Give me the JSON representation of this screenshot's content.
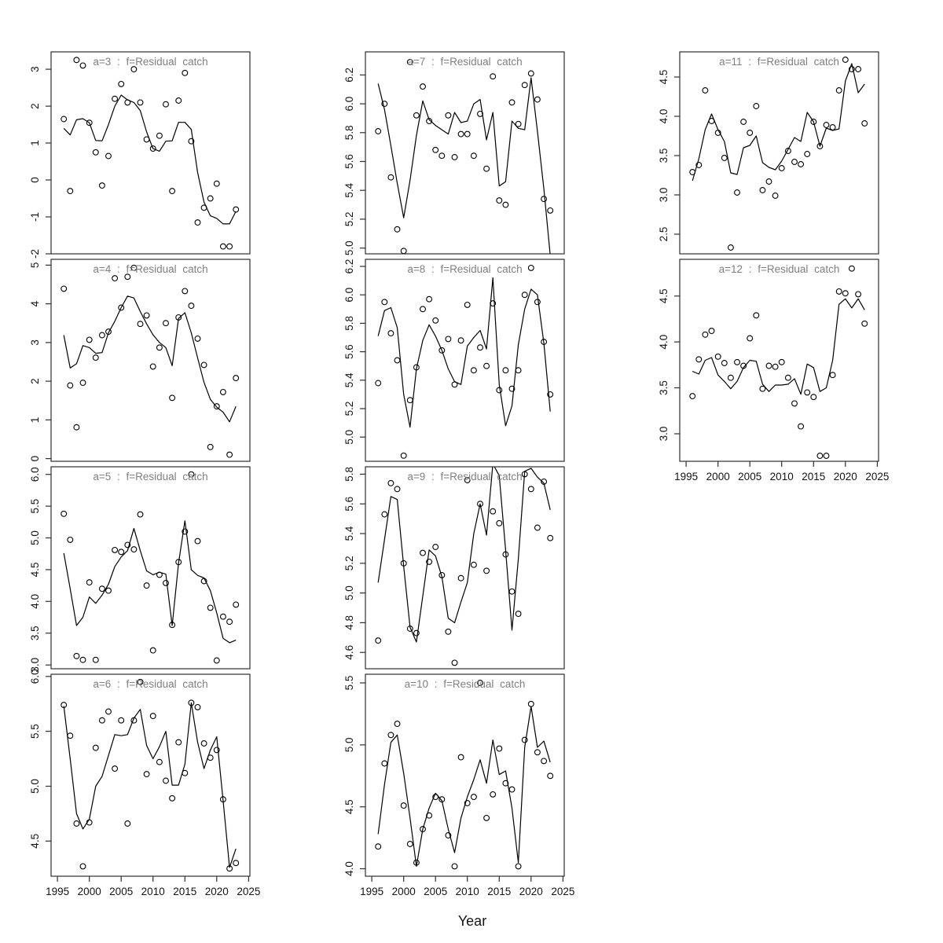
{
  "figure": {
    "xlabel": "Year",
    "background": "#ffffff",
    "frame_color": "#2f2f2f",
    "title_color": "#7f7f7f",
    "series_color": "#000000"
  },
  "x_axis": {
    "xlim": [
      1994.0,
      2025.2
    ],
    "ticks": [
      1995,
      2000,
      2005,
      2010,
      2015,
      2020,
      2025
    ],
    "tick_labels": [
      "1995",
      "2000",
      "2005",
      "2010",
      "2015",
      "2020",
      "2025"
    ],
    "years": [
      1996,
      1997,
      1998,
      1999,
      2000,
      2001,
      2002,
      2003,
      2004,
      2005,
      2006,
      2007,
      2008,
      2009,
      2010,
      2011,
      2012,
      2013,
      2014,
      2015,
      2016,
      2017,
      2018,
      2019,
      2020,
      2021,
      2022,
      2023
    ]
  },
  "chart_data": [
    {
      "type": "scatter+line",
      "a": "3",
      "title": "a=3 : f=Residual catch",
      "col": 0,
      "row": 0,
      "xaxis": false,
      "ylim": [
        -2.0,
        3.47
      ],
      "yticks": [
        "-2",
        "-1",
        "0",
        "1",
        "2",
        "3"
      ],
      "points": [
        1.65,
        -0.3,
        3.25,
        3.1,
        1.55,
        0.75,
        -0.15,
        0.65,
        2.2,
        2.6,
        2.1,
        3.0,
        2.1,
        1.1,
        0.85,
        1.2,
        2.05,
        -0.3,
        2.15,
        2.9,
        1.05,
        -1.15,
        -0.75,
        -0.5,
        -0.1,
        -1.8,
        -1.8,
        -0.8
      ],
      "line": [
        1.4,
        1.22,
        1.63,
        1.66,
        1.55,
        1.07,
        1.06,
        1.5,
        2.0,
        2.3,
        2.17,
        2.1,
        1.88,
        1.3,
        0.85,
        0.78,
        1.05,
        1.06,
        1.56,
        1.56,
        1.37,
        0.2,
        -0.6,
        -0.97,
        -1.04,
        -1.19,
        -1.19,
        -0.85
      ]
    },
    {
      "type": "scatter+line",
      "a": "4",
      "title": "a=4 : f=Residual catch",
      "col": 0,
      "row": 1,
      "xaxis": false,
      "ylim": [
        -0.07,
        5.15
      ],
      "yticks": [
        "0",
        "1",
        "2",
        "3",
        "4",
        "5"
      ],
      "points": [
        4.39,
        1.89,
        0.81,
        1.96,
        3.07,
        2.61,
        3.19,
        3.28,
        4.66,
        3.9,
        4.7,
        4.93,
        3.48,
        3.7,
        2.38,
        2.87,
        3.5,
        1.57,
        3.65,
        4.33,
        3.95,
        3.1,
        2.42,
        0.3,
        1.35,
        1.72,
        0.1,
        2.08
      ],
      "line": [
        3.19,
        2.34,
        2.45,
        2.92,
        2.87,
        2.72,
        2.74,
        3.25,
        3.55,
        3.9,
        4.2,
        4.15,
        3.8,
        3.48,
        3.2,
        3.0,
        2.87,
        2.4,
        3.62,
        3.77,
        3.25,
        2.6,
        1.97,
        1.53,
        1.33,
        1.2,
        0.95,
        1.35
      ]
    },
    {
      "type": "scatter+line",
      "a": "5",
      "title": "a=5 : f=Residual catch",
      "col": 0,
      "row": 2,
      "xaxis": false,
      "ylim": [
        2.94,
        6.12
      ],
      "yticks": [
        "3.0",
        "3.5",
        "4.0",
        "4.5",
        "5.0",
        "5.5",
        "6.0"
      ],
      "points": [
        5.38,
        4.97,
        3.14,
        3.08,
        4.3,
        3.08,
        4.2,
        4.17,
        4.81,
        4.78,
        4.89,
        4.82,
        5.37,
        4.25,
        3.23,
        4.42,
        4.29,
        3.63,
        4.62,
        5.1,
        6.0,
        4.95,
        4.32,
        3.9,
        3.07,
        3.76,
        3.68,
        3.95
      ],
      "line": [
        4.76,
        4.2,
        3.62,
        3.75,
        4.07,
        3.97,
        4.1,
        4.27,
        4.55,
        4.7,
        4.8,
        5.15,
        4.8,
        4.48,
        4.42,
        4.46,
        4.43,
        3.62,
        4.6,
        5.27,
        4.5,
        4.41,
        4.37,
        4.17,
        3.82,
        3.42,
        3.35,
        3.39
      ]
    },
    {
      "type": "scatter+line",
      "a": "6",
      "title": "a=6 : f=Residual catch",
      "col": 0,
      "row": 3,
      "xaxis": true,
      "ylim": [
        4.18,
        6.02
      ],
      "yticks": [
        "4.5",
        "5.0",
        "5.5",
        "6.0"
      ],
      "points": [
        5.74,
        5.46,
        4.66,
        4.27,
        4.67,
        5.35,
        5.6,
        5.68,
        5.16,
        5.6,
        4.66,
        5.6,
        5.95,
        5.11,
        5.64,
        5.22,
        5.05,
        4.89,
        5.4,
        5.12,
        5.76,
        5.72,
        5.39,
        5.26,
        5.33,
        4.88,
        4.25,
        4.3
      ],
      "line": [
        5.73,
        5.25,
        4.75,
        4.61,
        4.7,
        5.0,
        5.09,
        5.28,
        5.47,
        5.46,
        5.47,
        5.62,
        5.7,
        5.37,
        5.25,
        5.36,
        5.5,
        5.01,
        5.01,
        5.2,
        5.76,
        5.4,
        5.16,
        5.33,
        5.45,
        4.87,
        4.26,
        4.43
      ]
    },
    {
      "type": "scatter+line",
      "a": "7",
      "title": "a=7 : f=Residual catch",
      "col": 1,
      "row": 0,
      "xaxis": false,
      "ylim": [
        4.96,
        6.36
      ],
      "yticks": [
        "5.0",
        "5.2",
        "5.4",
        "5.6",
        "5.8",
        "6.0",
        "6.2"
      ],
      "points": [
        5.81,
        6.0,
        5.49,
        5.13,
        4.98,
        6.29,
        5.92,
        6.12,
        5.88,
        5.68,
        5.64,
        5.92,
        5.63,
        5.79,
        5.79,
        5.64,
        5.93,
        5.55,
        6.19,
        5.33,
        5.3,
        6.01,
        5.86,
        6.13,
        6.21,
        6.03,
        5.34,
        5.26
      ],
      "line": [
        6.14,
        5.96,
        5.71,
        5.45,
        5.21,
        5.47,
        5.78,
        6.02,
        5.89,
        5.85,
        5.82,
        5.79,
        5.94,
        5.87,
        5.88,
        6.0,
        6.03,
        5.75,
        5.94,
        5.43,
        5.46,
        5.88,
        5.83,
        5.82,
        6.18,
        5.81,
        5.41,
        4.95
      ]
    },
    {
      "type": "scatter+line",
      "a": "8",
      "title": "a=8 : f=Residual catch",
      "col": 1,
      "row": 1,
      "xaxis": false,
      "ylim": [
        4.83,
        6.25
      ],
      "yticks": [
        "5.0",
        "5.2",
        "5.4",
        "5.6",
        "5.8",
        "6.0",
        "6.2"
      ],
      "points": [
        5.38,
        5.95,
        5.73,
        5.54,
        4.87,
        5.26,
        5.49,
        5.9,
        5.97,
        5.82,
        5.61,
        5.69,
        5.37,
        5.68,
        5.93,
        5.47,
        5.63,
        5.5,
        5.94,
        5.33,
        5.47,
        5.34,
        5.47,
        6.0,
        6.19,
        5.95,
        5.67,
        5.3
      ],
      "line": [
        5.71,
        5.89,
        5.91,
        5.77,
        5.3,
        5.07,
        5.48,
        5.68,
        5.79,
        5.71,
        5.61,
        5.48,
        5.39,
        5.37,
        5.64,
        5.7,
        5.75,
        5.62,
        6.12,
        5.37,
        5.08,
        5.22,
        5.65,
        5.9,
        6.04,
        6.0,
        5.66,
        5.18
      ]
    },
    {
      "type": "scatter+line",
      "a": "9",
      "title": "a=9 : f=Residual catch",
      "col": 1,
      "row": 2,
      "xaxis": false,
      "ylim": [
        4.49,
        5.85
      ],
      "yticks": [
        "4.6",
        "4.8",
        "5.0",
        "5.2",
        "5.4",
        "5.6",
        "5.8"
      ],
      "points": [
        4.68,
        5.53,
        5.74,
        5.7,
        5.2,
        4.76,
        4.73,
        5.27,
        5.21,
        5.31,
        5.12,
        4.74,
        4.53,
        5.1,
        5.76,
        5.19,
        5.6,
        5.15,
        5.55,
        5.47,
        5.26,
        5.01,
        4.86,
        5.8,
        5.7,
        5.44,
        5.75,
        5.37
      ],
      "line": [
        5.07,
        5.36,
        5.65,
        5.63,
        5.18,
        4.77,
        4.67,
        4.98,
        5.29,
        5.25,
        5.11,
        4.83,
        4.8,
        4.94,
        5.07,
        5.4,
        5.6,
        5.39,
        5.87,
        5.79,
        5.29,
        4.75,
        5.23,
        5.82,
        5.84,
        5.78,
        5.74,
        5.56
      ]
    },
    {
      "type": "scatter+line",
      "a": "10",
      "title": "a=10 : f=Residual catch",
      "col": 1,
      "row": 3,
      "xaxis": true,
      "ylim": [
        3.94,
        5.57
      ],
      "yticks": [
        "4.0",
        "4.5",
        "5.0",
        "5.5"
      ],
      "points": [
        4.18,
        4.85,
        5.08,
        5.17,
        4.51,
        4.2,
        4.05,
        4.32,
        4.43,
        4.58,
        4.56,
        4.27,
        4.02,
        4.9,
        4.53,
        4.58,
        5.5,
        4.41,
        4.6,
        4.97,
        4.69,
        4.64,
        4.02,
        5.04,
        5.33,
        4.94,
        4.87,
        4.75
      ],
      "line": [
        4.28,
        4.68,
        5.02,
        5.08,
        4.77,
        4.41,
        4.02,
        4.32,
        4.49,
        4.61,
        4.55,
        4.32,
        4.13,
        4.41,
        4.58,
        4.72,
        4.88,
        4.69,
        5.04,
        4.76,
        4.79,
        4.49,
        4.05,
        4.98,
        5.31,
        4.98,
        5.03,
        4.86
      ]
    },
    {
      "type": "scatter+line",
      "a": "11",
      "title": "a=11 : f=Residual catch",
      "col": 2,
      "row": 0,
      "xaxis": false,
      "ylim": [
        2.25,
        4.82
      ],
      "yticks": [
        "2.5",
        "3.0",
        "3.5",
        "4.0",
        "4.5"
      ],
      "points": [
        3.29,
        3.38,
        4.33,
        3.94,
        3.79,
        3.47,
        2.33,
        3.03,
        3.93,
        3.79,
        4.13,
        3.06,
        3.17,
        2.99,
        3.34,
        3.56,
        3.42,
        3.39,
        3.52,
        3.93,
        3.62,
        3.89,
        3.86,
        4.33,
        4.72,
        4.6,
        4.6,
        3.91
      ],
      "line": [
        3.18,
        3.46,
        3.83,
        4.03,
        3.83,
        3.68,
        3.28,
        3.26,
        3.6,
        3.63,
        3.75,
        3.41,
        3.35,
        3.32,
        3.43,
        3.58,
        3.73,
        3.68,
        4.05,
        3.93,
        3.62,
        3.85,
        3.82,
        3.84,
        4.45,
        4.67,
        4.3,
        4.41
      ]
    },
    {
      "type": "scatter+line",
      "a": "12",
      "title": "a=12 : f=Residual catch",
      "col": 2,
      "row": 1,
      "xaxis": true,
      "ylim": [
        2.7,
        4.9
      ],
      "yticks": [
        "3.0",
        "3.5",
        "4.0",
        "4.5"
      ],
      "points": [
        3.41,
        3.81,
        4.08,
        4.12,
        3.84,
        3.77,
        3.61,
        3.78,
        3.74,
        4.04,
        4.29,
        3.49,
        3.74,
        3.73,
        3.78,
        3.61,
        3.33,
        3.08,
        3.45,
        3.4,
        2.76,
        2.76,
        3.64,
        4.55,
        4.53,
        4.8,
        4.52,
        4.2
      ],
      "line": [
        3.68,
        3.65,
        3.8,
        3.83,
        3.64,
        3.57,
        3.49,
        3.57,
        3.72,
        3.8,
        3.79,
        3.54,
        3.46,
        3.53,
        3.53,
        3.54,
        3.6,
        3.43,
        3.76,
        3.72,
        3.46,
        3.5,
        3.8,
        4.41,
        4.47,
        4.37,
        4.47,
        4.35
      ]
    }
  ]
}
